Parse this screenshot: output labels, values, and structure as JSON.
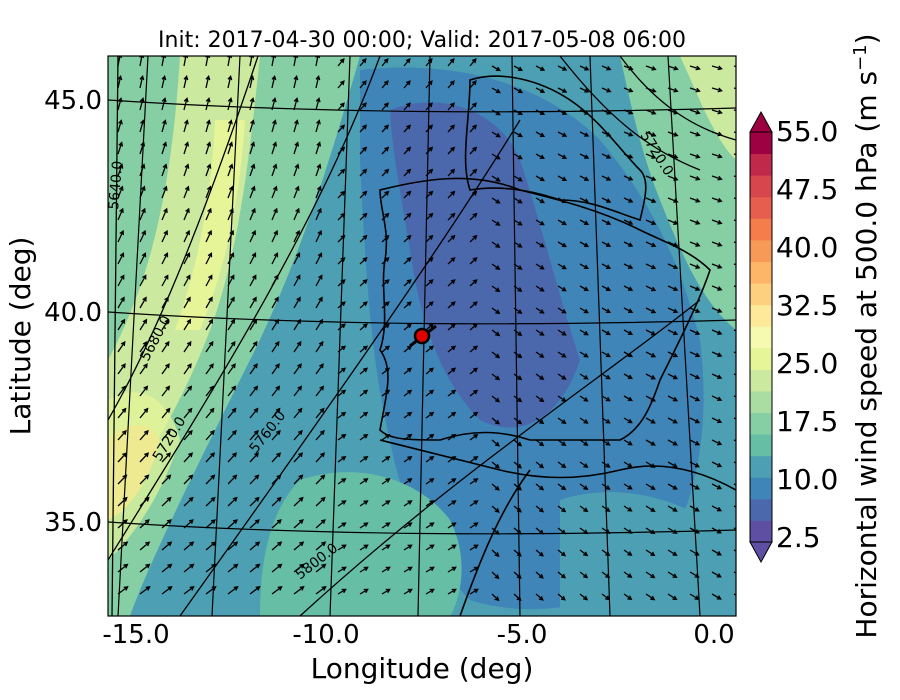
{
  "title": "Init: 2017-04-30 00:00; Valid: 2017-05-08 06:00",
  "axes": {
    "xlabel": "Longitude (deg)",
    "ylabel": "Latitude (deg)",
    "xticks": [
      "-15.0",
      "-10.0",
      "-5.0",
      "0.0"
    ],
    "yticks": [
      "45.0",
      "40.0",
      "35.0"
    ]
  },
  "colorbar": {
    "label": "Horizontal wind speed at 500.0 hPa (m s",
    "label_exp": "−1",
    "label_end": ")",
    "ticks": [
      "55.0",
      "47.5",
      "40.0",
      "32.5",
      "25.0",
      "17.5",
      "10.0",
      "2.5"
    ],
    "colors": [
      "#5e4fa2",
      "#4c68ad",
      "#3f85b8",
      "#4da0b4",
      "#66bea5",
      "#86cfa5",
      "#a9dda2",
      "#cbe99f",
      "#e6f598",
      "#f5fab0",
      "#fee89a",
      "#fdd07f",
      "#fdb567",
      "#f89a57",
      "#f57d4b",
      "#e65e4e",
      "#d7454d",
      "#c1294a",
      "#9e0142"
    ],
    "extend_low_color": "#5e4fa2",
    "extend_high_color": "#9e0142"
  },
  "contours": {
    "labels": [
      "5640.0",
      "5680.0",
      "5720.0",
      "5760.0",
      "5800.0",
      "5720.0"
    ]
  },
  "marker": {
    "color": "#e00000"
  }
}
